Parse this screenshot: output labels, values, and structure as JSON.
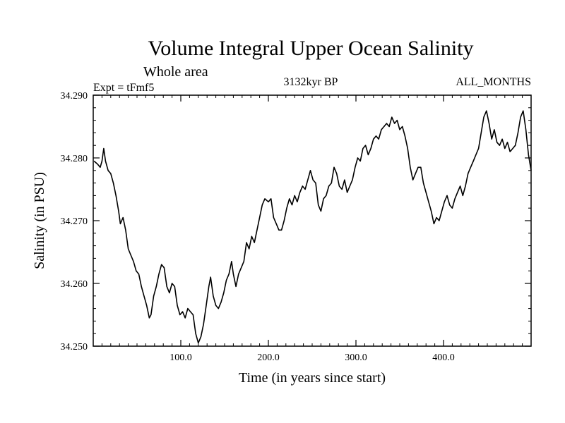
{
  "chart_data": {
    "type": "line",
    "title": "Volume Integral Upper Ocean Salinity",
    "subtitle": "Whole area",
    "experiment_label": "Expt = tFmf5",
    "period_label": "3132kyr BP",
    "months_label": "ALL_MONTHS",
    "xlabel": "Time (in years since start)",
    "ylabel": "Salinity (in PSU)",
    "xlim": [
      0,
      500
    ],
    "ylim": [
      34.25,
      34.29
    ],
    "x_ticks": [
      {
        "value": 100,
        "label": "100.0"
      },
      {
        "value": 200,
        "label": "200.0"
      },
      {
        "value": 300,
        "label": "300.0"
      },
      {
        "value": 400,
        "label": "400.0"
      }
    ],
    "y_ticks": [
      {
        "value": 34.25,
        "label": "34.250"
      },
      {
        "value": 34.26,
        "label": "34.260"
      },
      {
        "value": 34.27,
        "label": "34.270"
      },
      {
        "value": 34.28,
        "label": "34.280"
      },
      {
        "value": 34.29,
        "label": "34.290"
      }
    ],
    "series": [
      {
        "name": "salinity",
        "points": [
          [
            1,
            34.2795
          ],
          [
            5,
            34.279
          ],
          [
            8,
            34.2785
          ],
          [
            10,
            34.2795
          ],
          [
            12,
            34.2815
          ],
          [
            14,
            34.2795
          ],
          [
            17,
            34.278
          ],
          [
            20,
            34.2775
          ],
          [
            23,
            34.276
          ],
          [
            26,
            34.274
          ],
          [
            29,
            34.2715
          ],
          [
            31,
            34.2695
          ],
          [
            34,
            34.2705
          ],
          [
            37,
            34.2685
          ],
          [
            40,
            34.2655
          ],
          [
            43,
            34.2645
          ],
          [
            46,
            34.2635
          ],
          [
            49,
            34.262
          ],
          [
            52,
            34.2615
          ],
          [
            55,
            34.2595
          ],
          [
            58,
            34.258
          ],
          [
            61,
            34.2565
          ],
          [
            64,
            34.2545
          ],
          [
            66,
            34.255
          ],
          [
            69,
            34.258
          ],
          [
            72,
            34.2595
          ],
          [
            75,
            34.2615
          ],
          [
            78,
            34.263
          ],
          [
            81,
            34.2625
          ],
          [
            84,
            34.2595
          ],
          [
            87,
            34.2585
          ],
          [
            90,
            34.26
          ],
          [
            93,
            34.2595
          ],
          [
            96,
            34.2565
          ],
          [
            99,
            34.255
          ],
          [
            102,
            34.2555
          ],
          [
            105,
            34.2545
          ],
          [
            108,
            34.256
          ],
          [
            111,
            34.2555
          ],
          [
            114,
            34.255
          ],
          [
            117,
            34.252
          ],
          [
            120,
            34.2505
          ],
          [
            123,
            34.2515
          ],
          [
            126,
            34.2535
          ],
          [
            129,
            34.2565
          ],
          [
            132,
            34.2595
          ],
          [
            134,
            34.261
          ],
          [
            137,
            34.258
          ],
          [
            140,
            34.2565
          ],
          [
            143,
            34.256
          ],
          [
            146,
            34.257
          ],
          [
            149,
            34.2585
          ],
          [
            152,
            34.2605
          ],
          [
            155,
            34.2615
          ],
          [
            158,
            34.2635
          ],
          [
            160,
            34.2615
          ],
          [
            163,
            34.2595
          ],
          [
            166,
            34.2615
          ],
          [
            169,
            34.2625
          ],
          [
            172,
            34.2635
          ],
          [
            175,
            34.2665
          ],
          [
            178,
            34.2655
          ],
          [
            181,
            34.2675
          ],
          [
            184,
            34.2665
          ],
          [
            187,
            34.2685
          ],
          [
            190,
            34.2705
          ],
          [
            193,
            34.2725
          ],
          [
            196,
            34.2735
          ],
          [
            200,
            34.273
          ],
          [
            203,
            34.2735
          ],
          [
            206,
            34.2705
          ],
          [
            209,
            34.2695
          ],
          [
            212,
            34.2685
          ],
          [
            215,
            34.2685
          ],
          [
            218,
            34.27
          ],
          [
            221,
            34.272
          ],
          [
            224,
            34.2735
          ],
          [
            227,
            34.2725
          ],
          [
            230,
            34.274
          ],
          [
            233,
            34.273
          ],
          [
            236,
            34.2745
          ],
          [
            239,
            34.2755
          ],
          [
            242,
            34.275
          ],
          [
            245,
            34.2765
          ],
          [
            248,
            34.278
          ],
          [
            251,
            34.2765
          ],
          [
            254,
            34.276
          ],
          [
            257,
            34.2725
          ],
          [
            260,
            34.2715
          ],
          [
            263,
            34.2735
          ],
          [
            266,
            34.274
          ],
          [
            269,
            34.2755
          ],
          [
            272,
            34.276
          ],
          [
            275,
            34.2785
          ],
          [
            278,
            34.2775
          ],
          [
            281,
            34.2755
          ],
          [
            284,
            34.275
          ],
          [
            287,
            34.2765
          ],
          [
            290,
            34.2745
          ],
          [
            293,
            34.2755
          ],
          [
            296,
            34.2765
          ],
          [
            299,
            34.2785
          ],
          [
            302,
            34.28
          ],
          [
            305,
            34.2795
          ],
          [
            308,
            34.2815
          ],
          [
            311,
            34.282
          ],
          [
            314,
            34.2805
          ],
          [
            317,
            34.2815
          ],
          [
            320,
            34.283
          ],
          [
            323,
            34.2835
          ],
          [
            326,
            34.283
          ],
          [
            329,
            34.2845
          ],
          [
            332,
            34.285
          ],
          [
            335,
            34.2855
          ],
          [
            338,
            34.285
          ],
          [
            341,
            34.2865
          ],
          [
            344,
            34.2855
          ],
          [
            347,
            34.286
          ],
          [
            350,
            34.2845
          ],
          [
            353,
            34.285
          ],
          [
            356,
            34.2835
          ],
          [
            359,
            34.2815
          ],
          [
            362,
            34.2785
          ],
          [
            365,
            34.2765
          ],
          [
            368,
            34.2775
          ],
          [
            371,
            34.2785
          ],
          [
            374,
            34.2785
          ],
          [
            377,
            34.276
          ],
          [
            380,
            34.2745
          ],
          [
            383,
            34.273
          ],
          [
            386,
            34.2715
          ],
          [
            389,
            34.2695
          ],
          [
            392,
            34.2705
          ],
          [
            395,
            34.27
          ],
          [
            398,
            34.2715
          ],
          [
            401,
            34.273
          ],
          [
            404,
            34.274
          ],
          [
            407,
            34.2725
          ],
          [
            410,
            34.272
          ],
          [
            413,
            34.2735
          ],
          [
            416,
            34.2745
          ],
          [
            419,
            34.2755
          ],
          [
            422,
            34.274
          ],
          [
            425,
            34.2755
          ],
          [
            428,
            34.2775
          ],
          [
            431,
            34.2785
          ],
          [
            434,
            34.2795
          ],
          [
            437,
            34.2805
          ],
          [
            440,
            34.2815
          ],
          [
            443,
            34.284
          ],
          [
            446,
            34.2865
          ],
          [
            449,
            34.2875
          ],
          [
            452,
            34.2855
          ],
          [
            455,
            34.283
          ],
          [
            458,
            34.2845
          ],
          [
            461,
            34.2825
          ],
          [
            464,
            34.282
          ],
          [
            467,
            34.283
          ],
          [
            470,
            34.2815
          ],
          [
            473,
            34.2825
          ],
          [
            476,
            34.281
          ],
          [
            479,
            34.2815
          ],
          [
            482,
            34.282
          ],
          [
            485,
            34.284
          ],
          [
            488,
            34.2865
          ],
          [
            491,
            34.2875
          ],
          [
            494,
            34.2845
          ],
          [
            497,
            34.2805
          ],
          [
            500,
            34.278
          ]
        ]
      }
    ]
  }
}
